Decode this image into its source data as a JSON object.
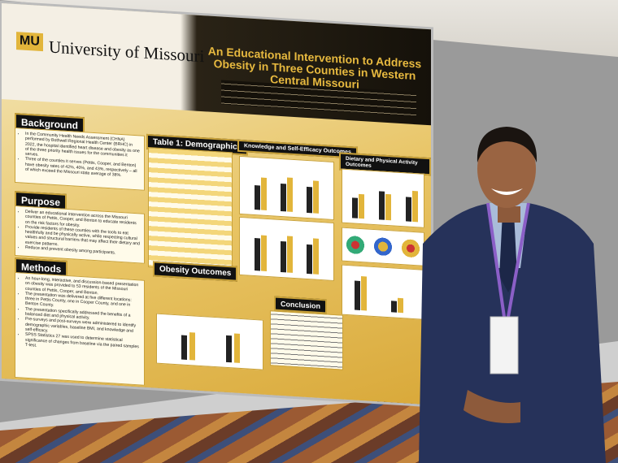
{
  "poster": {
    "logo": "MU",
    "institution": "University of Missouri",
    "title": "An Educational Intervention to Address Obesity in Three Counties in Western Central Missouri",
    "sections": [
      {
        "heading": "Background",
        "bullets": [
          "In the Community Health Needs Assessment (CHNA) performed by Bothwell Regional Health Center (BRHC) in 2022, the hospital identified heart disease and obesity as one of the three priority health issues for the communities it serves.",
          "Three of the counties it serves (Pettis, Cooper, and Benton) have obesity rates of 42%, 40%, and 43%, respectively – all of which exceed the Missouri state average of 38%."
        ]
      },
      {
        "heading": "Purpose",
        "bullets": [
          "Deliver an educational intervention across the Missouri counties of Pettis, Cooper, and Benton to educate residents on the risk factors for obesity.",
          "Provide residents of these counties with the tools to eat healthfully and be physically active, while respecting cultural values and structural barriers that may affect their dietary and exercise patterns.",
          "Reduce and prevent obesity among participants."
        ]
      },
      {
        "heading": "Methods",
        "bullets": [
          "An hour-long, interactive, and discussion-based presentation on obesity was provided to 53 residents of the Missouri counties of Pettis, Cooper, and Benton.",
          "The presentation was delivered at five different locations: three in Pettis County, one in Cooper County, and one in Benton County.",
          "The presentation specifically addressed the benefits of a balanced diet and physical activity.",
          "Pre-surveys and post-surveys were administered to identify demographic variables, baseline BMI, and knowledge and self-efficacy.",
          "SPSS Statistics 27 was used to determine statistical significance of changes from baseline via the paired samples T-test."
        ]
      }
    ],
    "table_title": "Table 1: Demographics",
    "obesity_heading": "Obesity Outcomes",
    "knowledge_heading": "Knowledge and Self-Efficacy Outcomes",
    "dietary_heading": "Dietary and Physical Activity Outcomes",
    "conclusion_heading": "Conclusion"
  }
}
